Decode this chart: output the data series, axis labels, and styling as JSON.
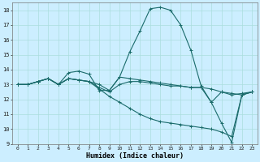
{
  "xlabel": "Humidex (Indice chaleur)",
  "bg_color": "#cceeff",
  "grid_color": "#aadddd",
  "line_color": "#1a6b6b",
  "x_values": [
    0,
    1,
    2,
    3,
    4,
    5,
    6,
    7,
    8,
    9,
    10,
    11,
    12,
    13,
    14,
    15,
    16,
    17,
    18,
    19,
    20,
    21,
    22,
    23
  ],
  "series": [
    [
      13,
      13,
      13.2,
      13.4,
      13.0,
      13.8,
      13.9,
      13.7,
      12.6,
      12.6,
      13.5,
      15.2,
      16.6,
      18.1,
      18.2,
      18.0,
      17.0,
      15.3,
      12.9,
      11.8,
      10.4,
      9.1,
      12.3,
      12.5
    ],
    [
      13,
      13,
      13.2,
      13.4,
      13.0,
      13.4,
      13.3,
      13.2,
      13.0,
      12.6,
      13.5,
      13.4,
      13.3,
      13.2,
      13.1,
      13.0,
      12.9,
      12.8,
      12.8,
      12.7,
      12.5,
      12.4,
      12.3,
      12.5
    ],
    [
      13,
      13,
      13.2,
      13.4,
      13.0,
      13.4,
      13.3,
      13.2,
      12.7,
      12.2,
      11.8,
      11.4,
      11.0,
      10.7,
      10.5,
      10.4,
      10.3,
      10.2,
      10.1,
      10.0,
      9.8,
      9.5,
      12.3,
      12.5
    ],
    [
      13,
      13,
      13.2,
      13.4,
      13.0,
      13.4,
      13.3,
      13.2,
      12.8,
      12.5,
      13.0,
      13.2,
      13.2,
      13.1,
      13.0,
      12.9,
      12.9,
      12.8,
      12.8,
      11.8,
      12.5,
      12.3,
      12.4,
      12.5
    ]
  ],
  "ylim": [
    9,
    18.5
  ],
  "yticks": [
    9,
    10,
    11,
    12,
    13,
    14,
    15,
    16,
    17,
    18
  ],
  "xlim": [
    -0.5,
    23.5
  ],
  "figw": 3.2,
  "figh": 2.0,
  "dpi": 100
}
